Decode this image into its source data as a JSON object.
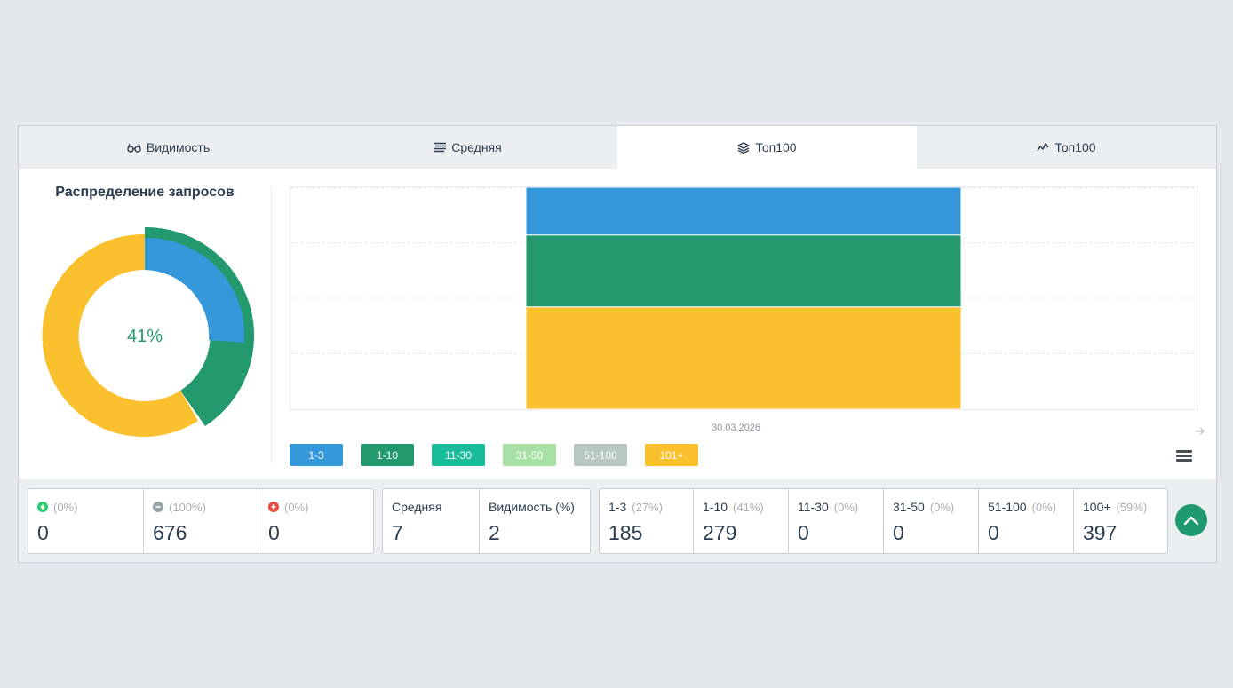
{
  "tabs": [
    {
      "label": "Видимость",
      "icon": "glasses-icon"
    },
    {
      "label": "Средняя",
      "icon": "list-icon"
    },
    {
      "label": "Топ100",
      "icon": "layers-icon"
    },
    {
      "label": "Топ100",
      "icon": "chart-line-icon"
    }
  ],
  "distribution": {
    "title": "Распределение запросов",
    "center_label": "41%",
    "colors": {
      "blue": "#3498db",
      "green": "#229a6e",
      "yellow": "#fbc02d"
    }
  },
  "chart_data": {
    "type": "bar",
    "stacked": true,
    "categories": [
      "30.03.2026"
    ],
    "series": [
      {
        "name": "1-3",
        "values": [
          185
        ],
        "color": "#3498db"
      },
      {
        "name": "1-10",
        "values": [
          279
        ],
        "color": "#229a6e"
      },
      {
        "name": "11-30",
        "values": [
          0
        ],
        "color": "#1abc9c"
      },
      {
        "name": "31-50",
        "values": [
          0
        ],
        "color": "#a8dfa6"
      },
      {
        "name": "51-100",
        "values": [
          0
        ],
        "color": "#b6c7c4"
      },
      {
        "name": "101+",
        "values": [
          397
        ],
        "color": "#fbc02d"
      }
    ],
    "grid": true,
    "legend": "bottom-left"
  },
  "chart": {
    "x_label": "30.03.2026"
  },
  "legend": [
    {
      "label": "1-3",
      "color": "#3498db"
    },
    {
      "label": "1-10",
      "color": "#229a6e"
    },
    {
      "label": "11-30",
      "color": "#1abc9c"
    },
    {
      "label": "31-50",
      "color": "#a8dfa6"
    },
    {
      "label": "51-100",
      "color": "#b6c7c4"
    },
    {
      "label": "101+",
      "color": "#fbc02d"
    }
  ],
  "stats": {
    "changes": [
      {
        "icon": "arrow-up-icon",
        "pct": "(0%)",
        "value": "0",
        "color": "#2ecc71"
      },
      {
        "icon": "minus-circle-icon",
        "pct": "(100%)",
        "value": "676",
        "color": "#95a5a6"
      },
      {
        "icon": "arrow-down-icon",
        "pct": "(0%)",
        "value": "0",
        "color": "#e74c3c"
      }
    ],
    "summary": [
      {
        "label": "Средняя",
        "value": "7"
      },
      {
        "label": "Видимость (%)",
        "value": "2"
      }
    ],
    "ranges": [
      {
        "label": "1-3",
        "pct": "(27%)",
        "value": "185"
      },
      {
        "label": "1-10",
        "pct": "(41%)",
        "value": "279"
      },
      {
        "label": "11-30",
        "pct": "(0%)",
        "value": "0"
      },
      {
        "label": "31-50",
        "pct": "(0%)",
        "value": "0"
      },
      {
        "label": "51-100",
        "pct": "(0%)",
        "value": "0"
      },
      {
        "label": "100+",
        "pct": "(59%)",
        "value": "397"
      }
    ]
  }
}
